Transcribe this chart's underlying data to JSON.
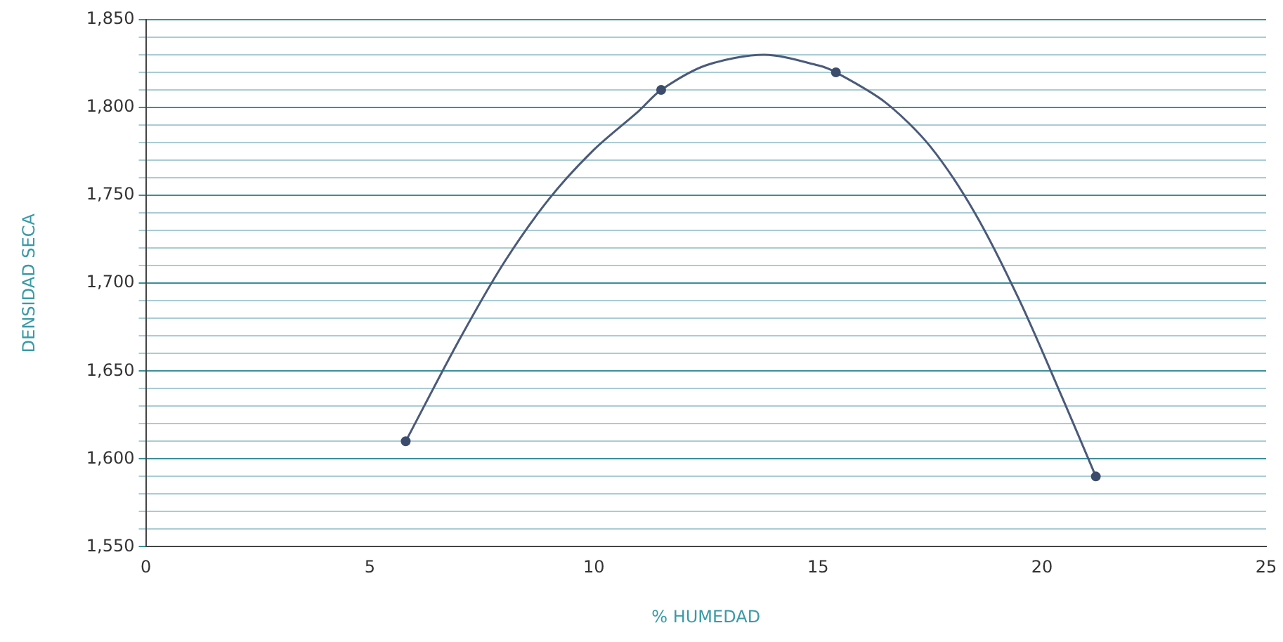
{
  "chart_data": {
    "type": "scatter",
    "xlabel": "% HUMEDAD",
    "ylabel": "DENSIDAD SECA",
    "xlim": [
      0,
      25
    ],
    "xticks": [
      0,
      5,
      10,
      15,
      20,
      25
    ],
    "ylim": [
      1550,
      1850
    ],
    "yticks": [
      {
        "value": 1550,
        "label": "1,550"
      },
      {
        "value": 1560,
        "label": null
      },
      {
        "value": 1570,
        "label": null
      },
      {
        "value": 1580,
        "label": null
      },
      {
        "value": 1590,
        "label": null
      },
      {
        "value": 1600,
        "label": "1,600"
      },
      {
        "value": 1610,
        "label": null
      },
      {
        "value": 1620,
        "label": null
      },
      {
        "value": 1630,
        "label": null
      },
      {
        "value": 1640,
        "label": null
      },
      {
        "value": 1650,
        "label": "1,650"
      },
      {
        "value": 1660,
        "label": null
      },
      {
        "value": 1670,
        "label": null
      },
      {
        "value": 1680,
        "label": null
      },
      {
        "value": 1690,
        "label": null
      },
      {
        "value": 1700,
        "label": "1,700"
      },
      {
        "value": 1710,
        "label": null
      },
      {
        "value": 1720,
        "label": null
      },
      {
        "value": 1730,
        "label": null
      },
      {
        "value": 1740,
        "label": null
      },
      {
        "value": 1750,
        "label": "1,750"
      },
      {
        "value": 1760,
        "label": null
      },
      {
        "value": 1770,
        "label": null
      },
      {
        "value": 1780,
        "label": null
      },
      {
        "value": 1790,
        "label": null
      },
      {
        "value": 1800,
        "label": "1,800"
      },
      {
        "value": 1810,
        "label": null
      },
      {
        "value": 1820,
        "label": null
      },
      {
        "value": 1830,
        "label": null
      },
      {
        "value": 1840,
        "label": null
      },
      {
        "value": 1850,
        "label": "1,850"
      }
    ],
    "grid": "y",
    "legend": false,
    "marker": "circle",
    "series": [
      {
        "color": "#3c4c6c",
        "x": [
          5.8,
          11.5,
          15.4,
          21.2
        ],
        "values": [
          1610,
          1810,
          1820,
          1590
        ]
      },
      {
        "type": "line",
        "color": "#4a5a7a",
        "marker": "none",
        "x": [
          5.8,
          7,
          8,
          9,
          10,
          11,
          11.5,
          12.5,
          13.8,
          15,
          15.4,
          16.5,
          17.5,
          18.5,
          19.5,
          20.5,
          21.2
        ],
        "values": [
          1610,
          1668,
          1712,
          1748,
          1776,
          1798,
          1810,
          1824,
          1830,
          1824,
          1820,
          1803,
          1778,
          1740,
          1690,
          1632,
          1590
        ]
      }
    ]
  }
}
